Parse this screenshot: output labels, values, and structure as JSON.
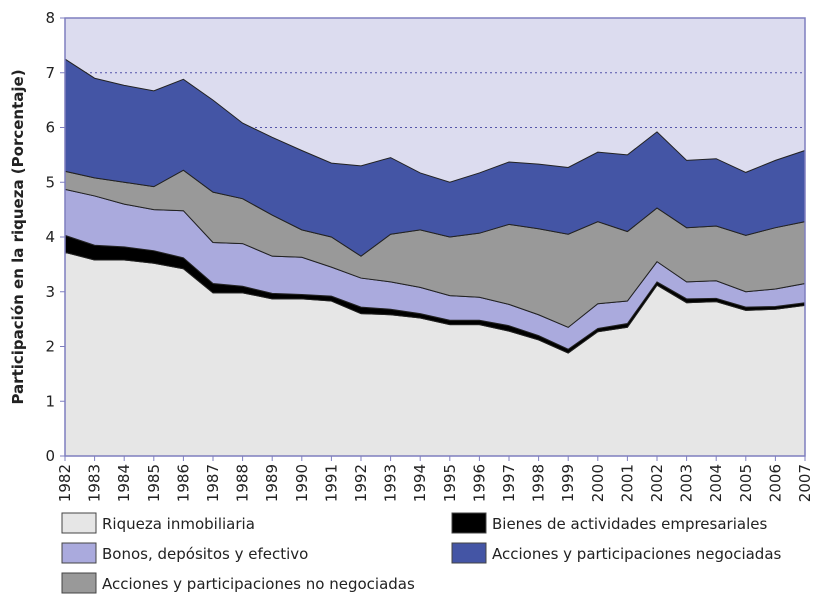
{
  "chart_data": {
    "type": "stacked-area",
    "y_label": "Participación en la riqueza (Porcentaje)",
    "categories": [
      "1982",
      "1983",
      "1984",
      "1985",
      "1986",
      "1987",
      "1988",
      "1989",
      "1990",
      "1991",
      "1992",
      "1993",
      "1994",
      "1995",
      "1996",
      "1997",
      "1998",
      "1999",
      "2000",
      "2001",
      "2002",
      "2003",
      "2004",
      "2005",
      "2006",
      "2007"
    ],
    "ylim": [
      0,
      8
    ],
    "yticks": [
      0,
      1,
      2,
      3,
      4,
      5,
      6,
      7,
      8
    ],
    "grid": true,
    "series": [
      {
        "name": "Riqueza inmobiliaria",
        "color": "#e6e6e6",
        "values": [
          3.72,
          3.58,
          3.58,
          3.52,
          3.42,
          2.98,
          2.98,
          2.87,
          2.87,
          2.83,
          2.6,
          2.58,
          2.52,
          2.4,
          2.4,
          2.28,
          2.12,
          1.88,
          2.27,
          2.35,
          3.12,
          2.8,
          2.82,
          2.66,
          2.68,
          2.75
        ]
      },
      {
        "name": "Bienes de actividades empresariales",
        "color": "#000000",
        "values": [
          0.31,
          0.27,
          0.24,
          0.23,
          0.2,
          0.17,
          0.12,
          0.1,
          0.08,
          0.09,
          0.12,
          0.1,
          0.08,
          0.08,
          0.08,
          0.1,
          0.08,
          0.07,
          0.06,
          0.07,
          0.06,
          0.07,
          0.06,
          0.06,
          0.05,
          0.05
        ]
      },
      {
        "name": "Bonos, depósitos y efectivo",
        "color": "#aaaadd",
        "values": [
          0.84,
          0.9,
          0.78,
          0.75,
          0.86,
          0.75,
          0.78,
          0.68,
          0.68,
          0.53,
          0.53,
          0.5,
          0.48,
          0.45,
          0.42,
          0.39,
          0.38,
          0.4,
          0.45,
          0.41,
          0.37,
          0.31,
          0.32,
          0.28,
          0.32,
          0.35
        ]
      },
      {
        "name": "Acciones y participaciones no negociadas",
        "color": "#999999",
        "values": [
          0.33,
          0.33,
          0.4,
          0.42,
          0.74,
          0.92,
          0.82,
          0.75,
          0.5,
          0.55,
          0.4,
          0.87,
          1.05,
          1.07,
          1.17,
          1.46,
          1.57,
          1.7,
          1.5,
          1.27,
          0.98,
          0.99,
          1.0,
          1.03,
          1.12,
          1.13
        ]
      },
      {
        "name": "Acciones y participaciones negociadas",
        "color": "#4455a5",
        "values": [
          2.05,
          1.82,
          1.77,
          1.75,
          1.66,
          1.68,
          1.38,
          1.42,
          1.45,
          1.35,
          1.65,
          1.4,
          1.04,
          1.0,
          1.1,
          1.14,
          1.18,
          1.22,
          1.27,
          1.4,
          1.39,
          1.23,
          1.23,
          1.15,
          1.23,
          1.3
        ]
      }
    ]
  }
}
